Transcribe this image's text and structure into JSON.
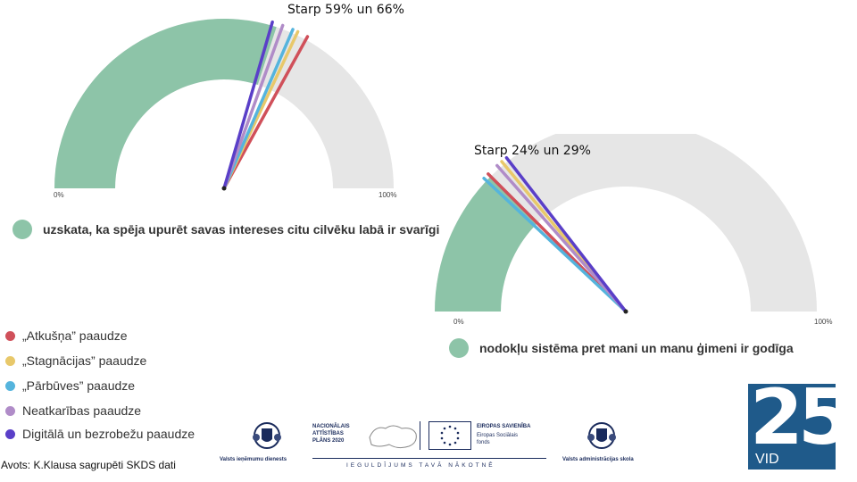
{
  "chart_data": [
    {
      "type": "gauge",
      "title": "Starp 59% un 66%",
      "range": [
        0,
        100
      ],
      "fill_value": 60,
      "min_label": "0%",
      "max_label": "100%",
      "series": [
        {
          "name": "„Atkušņa” paaudze",
          "value": 66
        },
        {
          "name": "„Stagnācijas” paaudze",
          "value": 64
        },
        {
          "name": "„Pārbūves” paaudze",
          "value": 63
        },
        {
          "name": "Neatkarības paaudze",
          "value": 61
        },
        {
          "name": "Digitālā un bezrobežu paaudze",
          "value": 59
        }
      ],
      "caption": "uzskata, ka spēja upurēt savas intereses citu cilvēku labā ir svarīgi"
    },
    {
      "type": "gauge",
      "title": "Starp 24% un 29%",
      "range": [
        0,
        100
      ],
      "fill_value": 25,
      "min_label": "0%",
      "max_label": "100%",
      "series": [
        {
          "name": "„Atkušņa” paaudze",
          "value": 25
        },
        {
          "name": "„Stagnācijas” paaudze",
          "value": 28
        },
        {
          "name": "„Pārbūves” paaudze",
          "value": 24
        },
        {
          "name": "Neatkarības paaudze",
          "value": 27
        },
        {
          "name": "Digitālā un bezrobežu paaudze",
          "value": 29
        }
      ],
      "caption": "nodokļu sistēma pret mani un manu ģimeni ir godīga"
    }
  ],
  "legend": [
    {
      "label": "„Atkušņa” paaudze",
      "color": "#d0505a"
    },
    {
      "label": "„Stagnācijas” paaudze",
      "color": "#e8c86a"
    },
    {
      "label": "„Pārbūves” paaudze",
      "color": "#55b4dd"
    },
    {
      "label": "Neatkarības paaudze",
      "color": "#b08cc8"
    },
    {
      "label": "Digitālā un bezrobežu paaudze",
      "color": "#5a3fc8"
    }
  ],
  "colors": {
    "fill": "#8dc4a8",
    "track": "#e6e6e6",
    "needle_base": "#222222"
  },
  "source": "Avots: K.Klausa sagrupēti SKDS dati",
  "logos": {
    "vid_name": "Valsts ieņēmumu dienests",
    "nap_lines": [
      "NACIONĀLAIS",
      "ATTĪSTĪBAS",
      "PLĀNS 2020"
    ],
    "eu_title": "EIROPAS SAVIENĪBA",
    "eu_sub1": "Eiropas Sociālais",
    "eu_sub2": "fonds",
    "tagline": "IEGULDĪJUMS TAVĀ NĀKOTNĒ",
    "vas_name": "Valsts administrācijas skola",
    "badge_number": "25",
    "badge_text": "VID"
  }
}
